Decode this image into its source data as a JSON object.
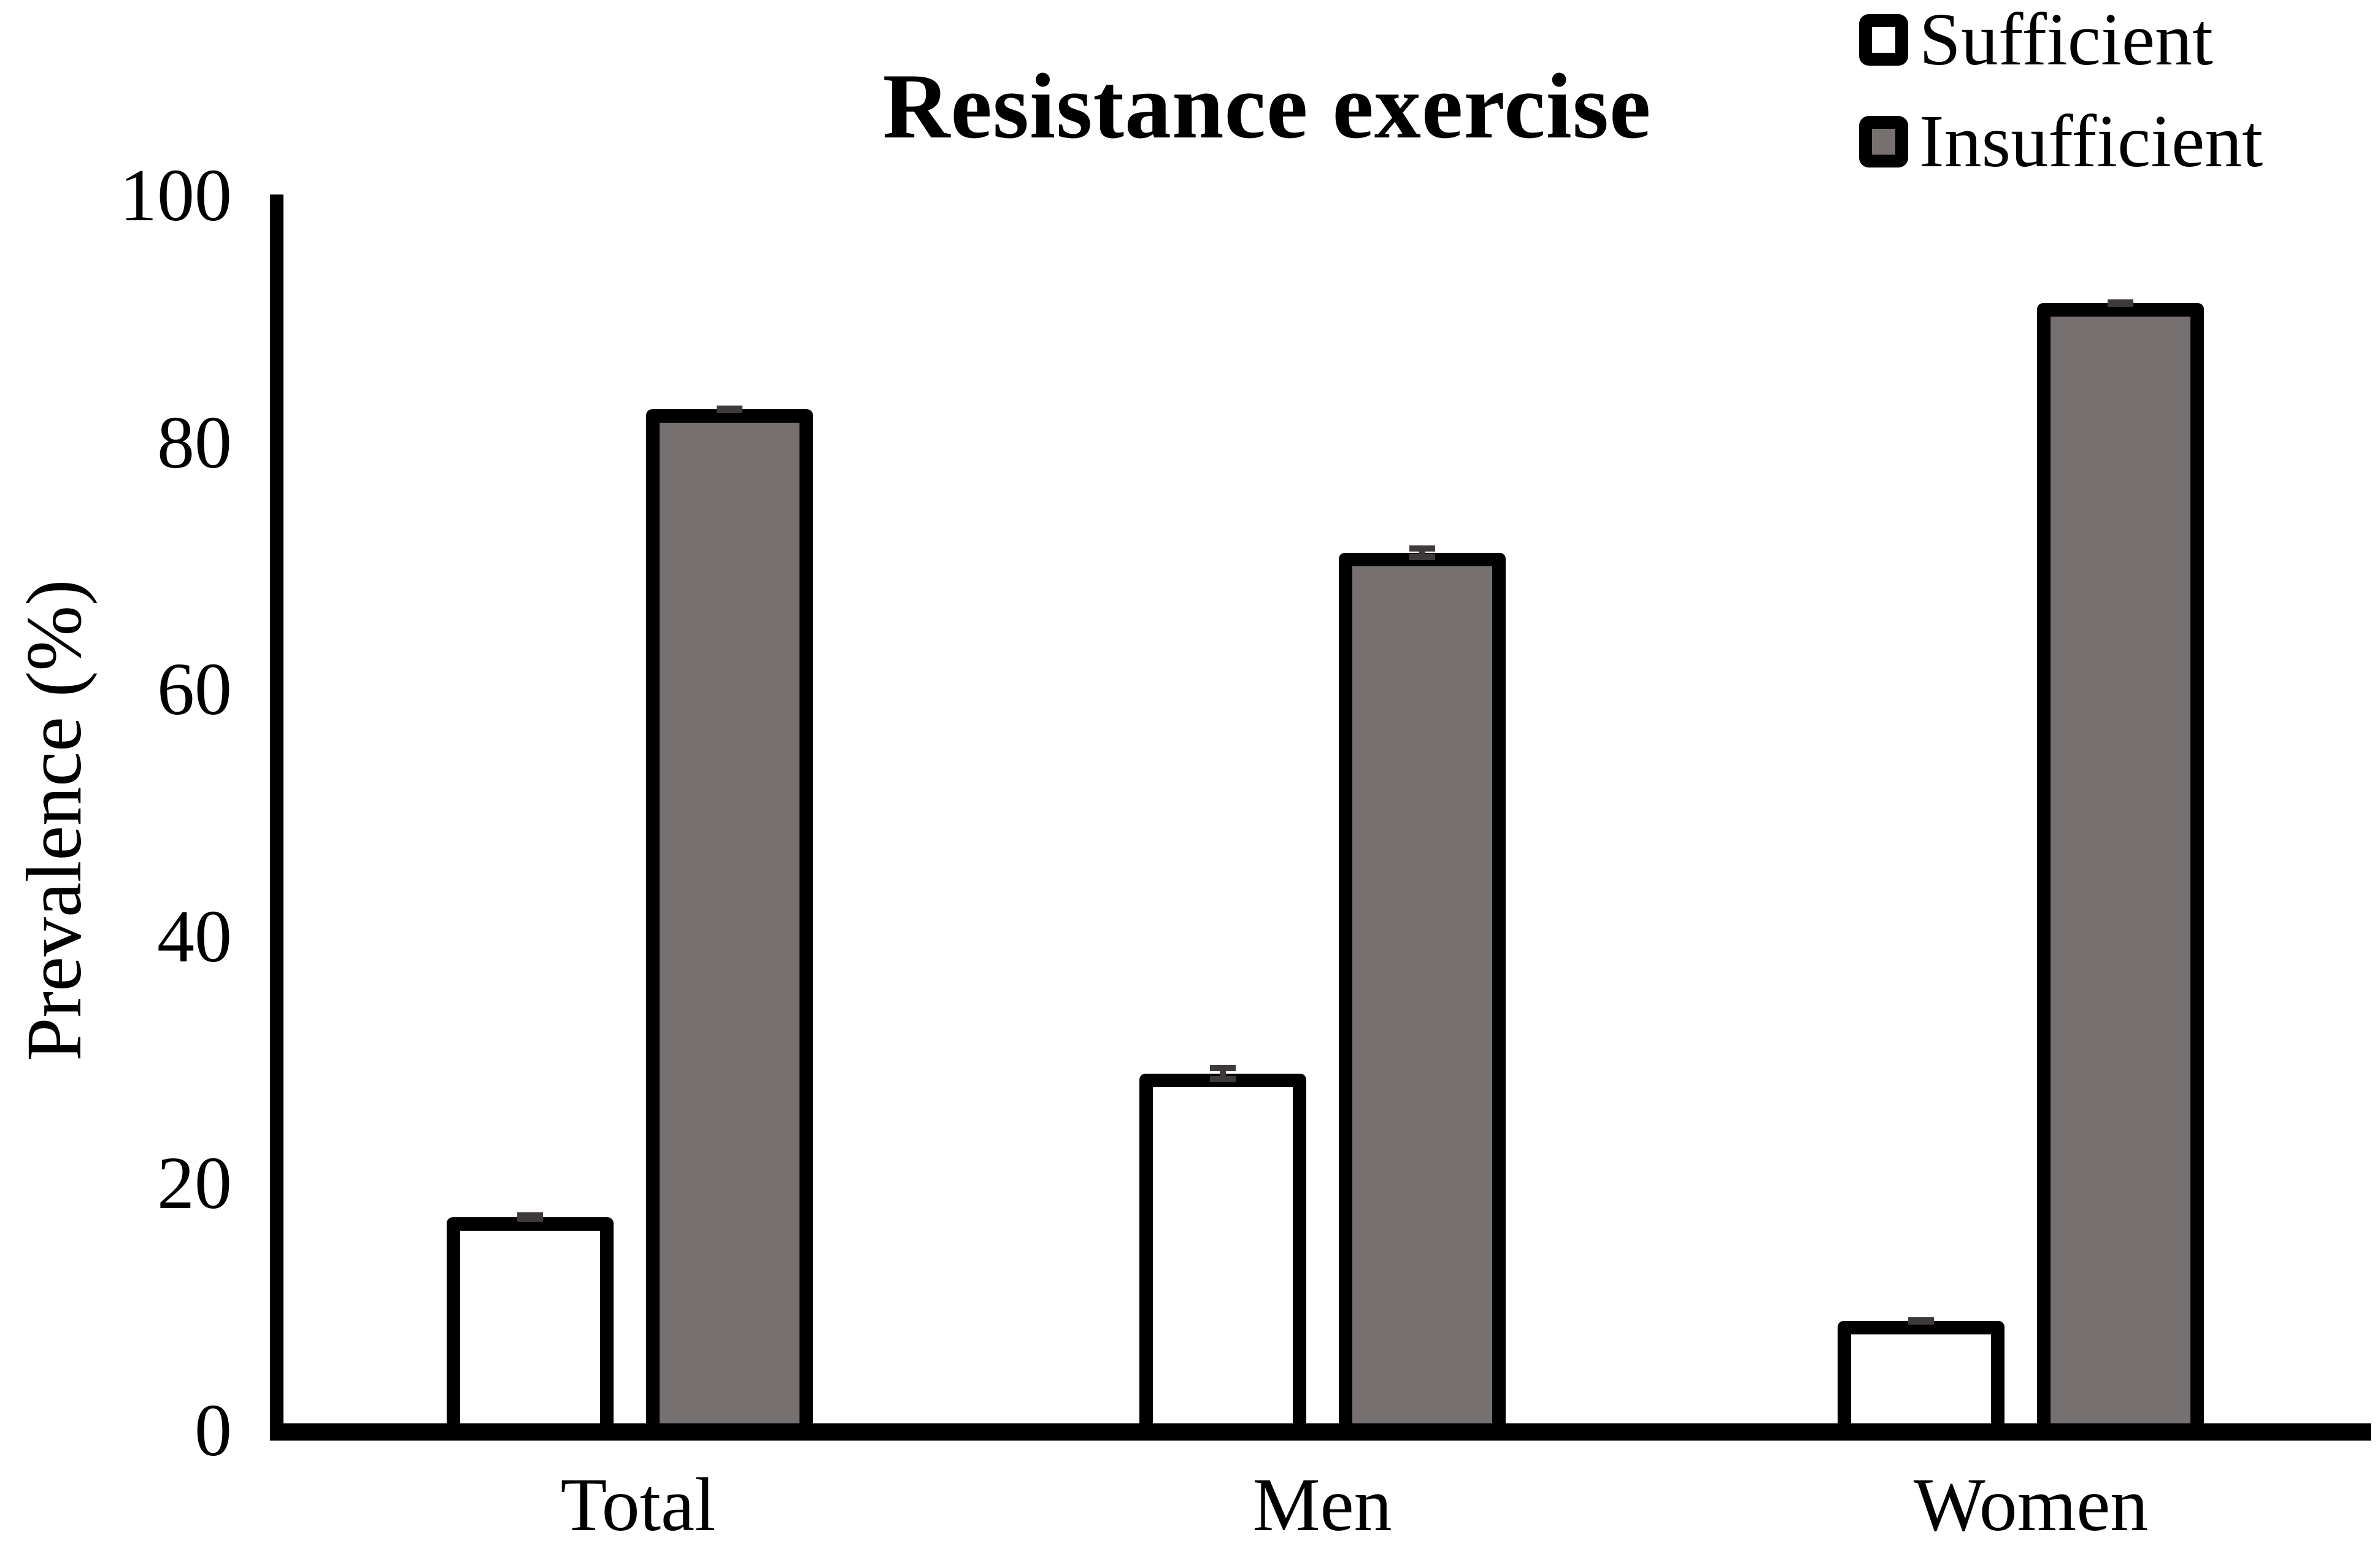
{
  "chart_data": {
    "type": "bar",
    "title": "Resistance exercise",
    "ylabel": "Prevalence (%)",
    "xlabel": "",
    "ylim": [
      0,
      100
    ],
    "yticks": [
      0,
      20,
      40,
      60,
      80,
      100
    ],
    "categories": [
      "Total",
      "Men",
      "Women"
    ],
    "series": [
      {
        "name": "Sufficient",
        "color": "#ffffff",
        "values": [
          17.3,
          28.9,
          8.9
        ],
        "errors": [
          0.4,
          0.7,
          0.3
        ]
      },
      {
        "name": "Insufficient",
        "color": "#767170",
        "values": [
          82.7,
          71.1,
          91.3
        ],
        "errors": [
          0.3,
          0.6,
          0.3
        ]
      }
    ],
    "bar_border_color": "#000000",
    "error_bar_color": "#3e3a39",
    "legend_position": "top-right",
    "grid": false
  }
}
